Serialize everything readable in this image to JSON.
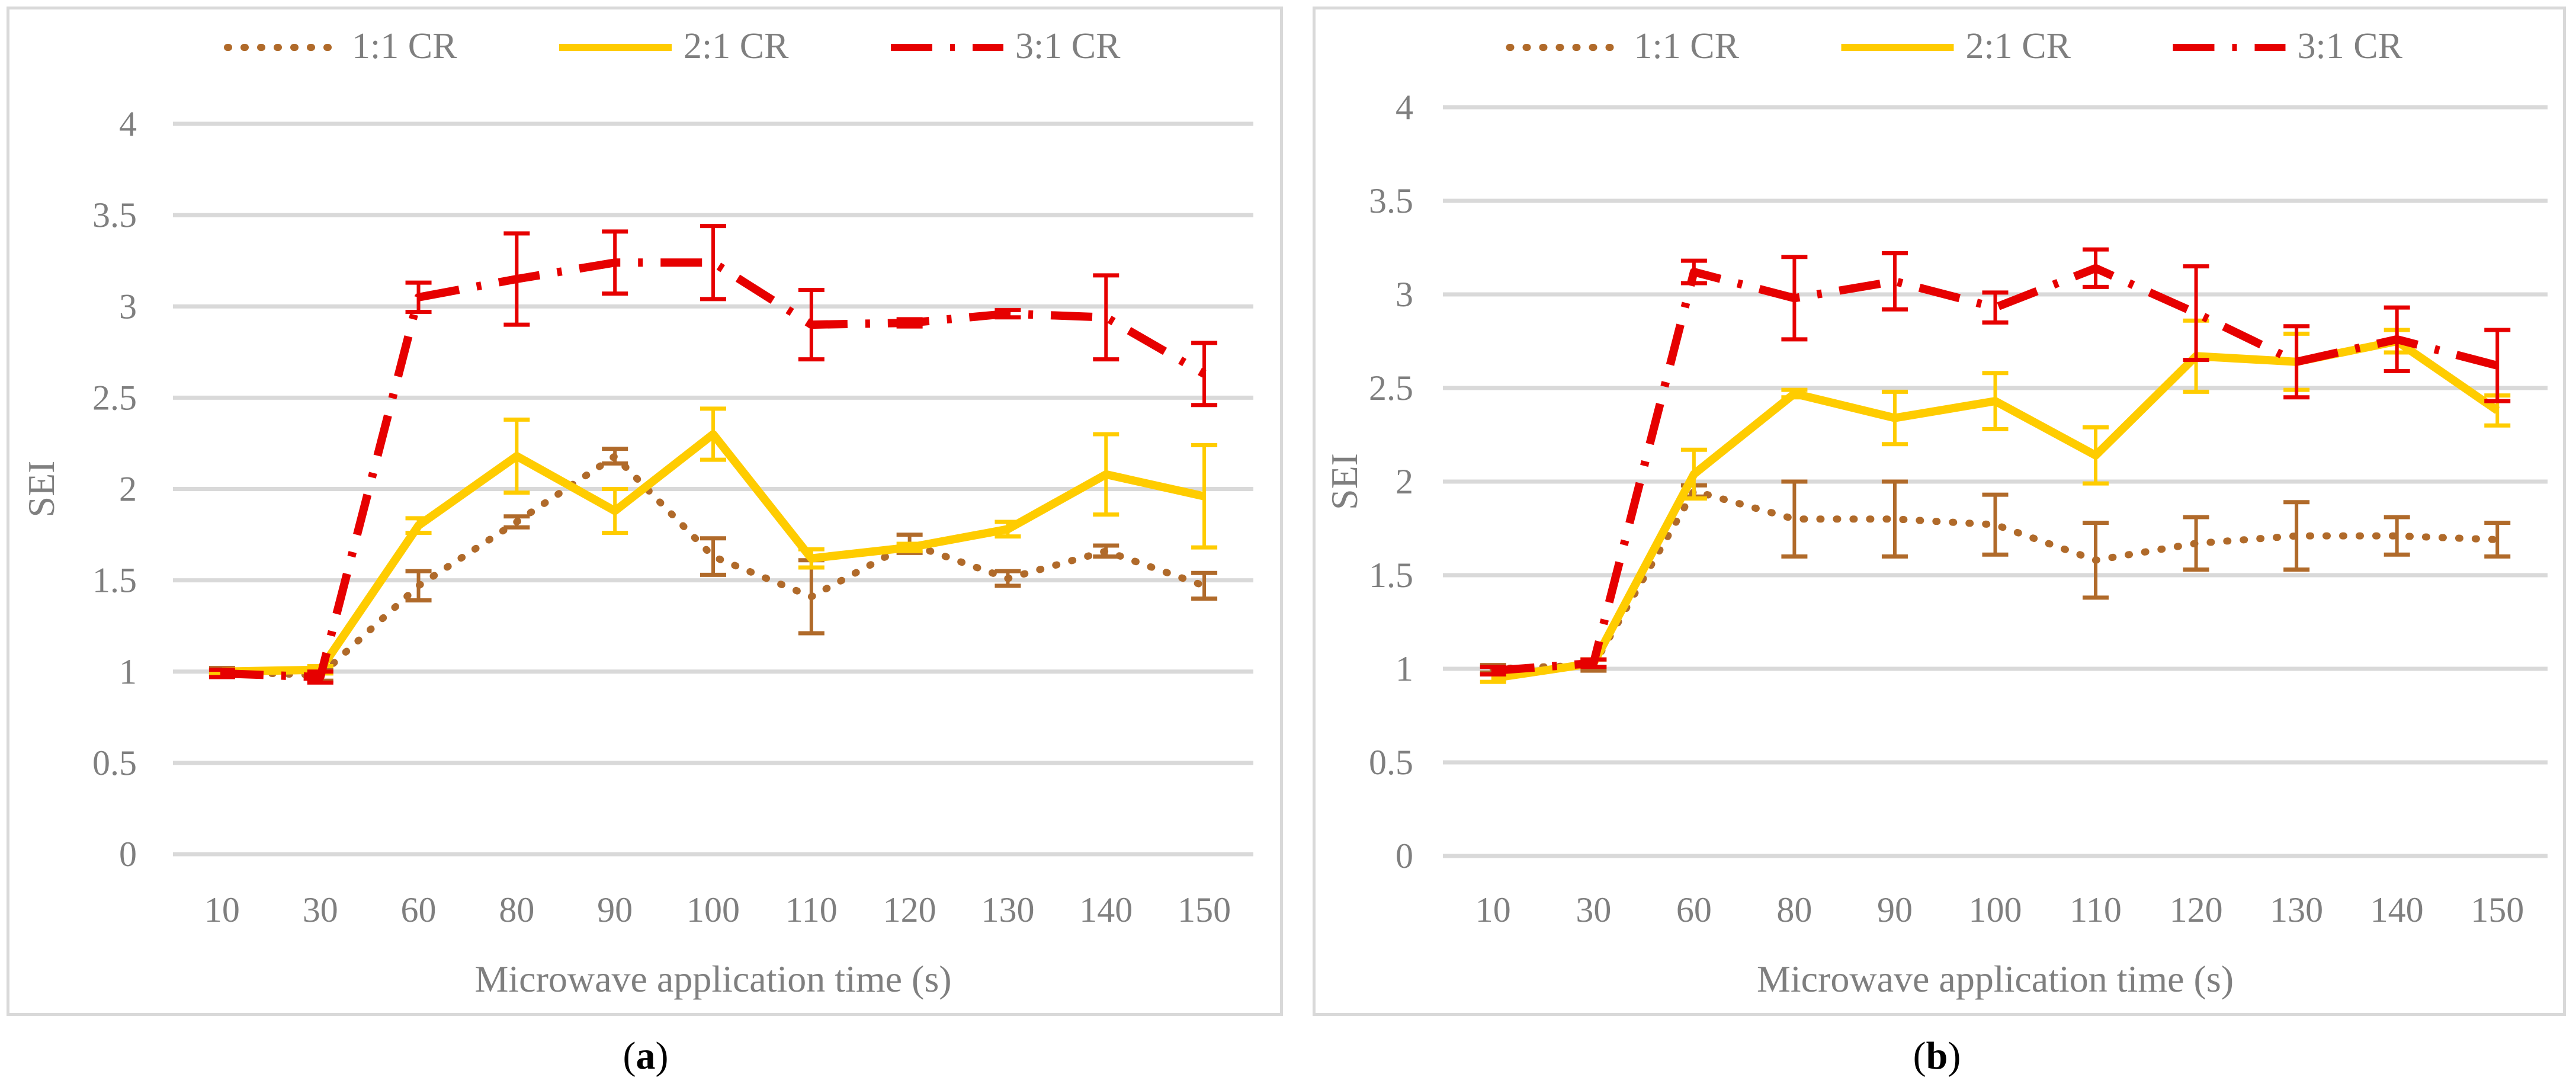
{
  "colors": {
    "s1": "#B06A2A",
    "s2": "#FFCC00",
    "s3": "#E60000",
    "grid": "#d9d9d9",
    "text": "#7f7f7f"
  },
  "captions": {
    "a_open": "(",
    "a_letter": "a",
    "a_close": ")",
    "b_open": "(",
    "b_letter": "b",
    "b_close": ")"
  },
  "chart_data": [
    {
      "type": "line",
      "panel": "a",
      "xlabel": "Microwave application time (s)",
      "ylabel": "SEI",
      "ylim": [
        0,
        4
      ],
      "yticks": [
        "0",
        "0.5",
        "1",
        "1.5",
        "2",
        "2.5",
        "3",
        "3.5",
        "4"
      ],
      "categories": [
        "10",
        "30",
        "60",
        "80",
        "90",
        "100",
        "110",
        "120",
        "130",
        "140",
        "150"
      ],
      "legend_position": "top-center",
      "grid": true,
      "series": [
        {
          "name": "1:1 CR",
          "style": "dotted",
          "values": [
            1.0,
            0.98,
            1.47,
            1.82,
            2.18,
            1.63,
            1.41,
            1.7,
            1.51,
            1.66,
            1.47
          ],
          "errors": [
            0.02,
            0.03,
            0.08,
            0.03,
            0.04,
            0.1,
            0.2,
            0.05,
            0.04,
            0.03,
            0.07
          ]
        },
        {
          "name": "2:1 CR",
          "style": "solid",
          "values": [
            1.0,
            1.01,
            1.8,
            2.18,
            1.88,
            2.3,
            1.62,
            1.68,
            1.78,
            2.08,
            1.96
          ],
          "errors": [
            0.01,
            0.02,
            0.04,
            0.2,
            0.12,
            0.14,
            0.05,
            0.02,
            0.04,
            0.22,
            0.28
          ]
        },
        {
          "name": "3:1 CR",
          "style": "dashdot",
          "values": [
            0.99,
            0.97,
            3.05,
            3.15,
            3.24,
            3.24,
            2.9,
            2.91,
            2.96,
            2.94,
            2.63
          ],
          "errors": [
            0.02,
            0.03,
            0.08,
            0.25,
            0.17,
            0.2,
            0.19,
            0.02,
            0.02,
            0.23,
            0.17
          ]
        }
      ]
    },
    {
      "type": "line",
      "panel": "b",
      "xlabel": "Microwave application time (s)",
      "ylabel": "SEI",
      "ylim": [
        0,
        4
      ],
      "yticks": [
        "0",
        "0.5",
        "1",
        "1.5",
        "2",
        "2.5",
        "3",
        "3.5",
        "4"
      ],
      "categories": [
        "10",
        "30",
        "60",
        "80",
        "90",
        "100",
        "110",
        "120",
        "130",
        "140",
        "150"
      ],
      "legend_position": "top-center",
      "grid": true,
      "series": [
        {
          "name": "1:1 CR",
          "style": "dotted",
          "values": [
            1.0,
            1.02,
            1.95,
            1.8,
            1.8,
            1.77,
            1.58,
            1.67,
            1.71,
            1.71,
            1.69
          ],
          "errors": [
            0.02,
            0.03,
            0.03,
            0.2,
            0.2,
            0.16,
            0.2,
            0.14,
            0.18,
            0.1,
            0.09
          ]
        },
        {
          "name": "2:1 CR",
          "style": "solid",
          "values": [
            0.95,
            1.03,
            2.04,
            2.47,
            2.34,
            2.43,
            2.14,
            2.67,
            2.64,
            2.75,
            2.38
          ],
          "errors": [
            0.02,
            0.02,
            0.13,
            0.02,
            0.14,
            0.15,
            0.15,
            0.19,
            0.15,
            0.06,
            0.08
          ]
        },
        {
          "name": "3:1 CR",
          "style": "dashdot",
          "values": [
            0.99,
            1.03,
            3.12,
            2.98,
            3.07,
            2.93,
            3.14,
            2.9,
            2.64,
            2.76,
            2.62
          ],
          "errors": [
            0.02,
            0.02,
            0.06,
            0.22,
            0.15,
            0.08,
            0.1,
            0.25,
            0.19,
            0.17,
            0.19
          ]
        }
      ]
    }
  ]
}
